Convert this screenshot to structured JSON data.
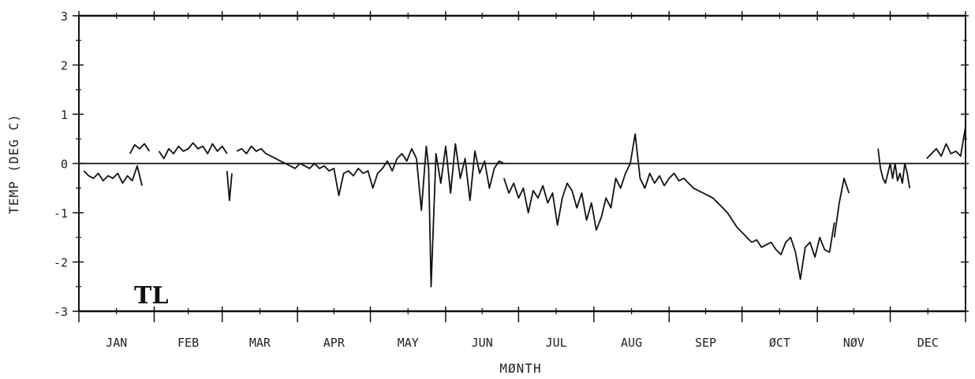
{
  "chart_data": {
    "type": "line",
    "title": "",
    "panel_label": "TL",
    "xlabel": "MØNTH",
    "ylabel": "TEMP (DEG C)",
    "ylim": [
      -3,
      3
    ],
    "yticks": [
      "3",
      "2",
      "1",
      "0",
      "-1",
      "-2",
      "-3"
    ],
    "x_unit": "day of year",
    "xlim": [
      1,
      366
    ],
    "months": [
      "JAN",
      "FEB",
      "MAR",
      "APR",
      "MAY",
      "JUN",
      "JUL",
      "AUG",
      "SEP",
      "ØCT",
      "NØV",
      "DEC"
    ],
    "grid": false,
    "zero_line": true,
    "series": [
      {
        "segments": [
          {
            "x": [
              3,
              5,
              7,
              9,
              11,
              13,
              15,
              17,
              19,
              21,
              23,
              25,
              27
            ],
            "y": [
              -0.15,
              -0.25,
              -0.3,
              -0.2,
              -0.35,
              -0.25,
              -0.3,
              -0.2,
              -0.4,
              -0.25,
              -0.35,
              -0.05,
              -0.45
            ]
          },
          {
            "x": [
              22,
              24,
              26,
              28,
              30
            ],
            "y": [
              0.2,
              0.38,
              0.3,
              0.4,
              0.25
            ]
          },
          {
            "x": [
              34,
              36,
              38,
              40,
              42,
              44,
              46,
              48,
              50,
              52,
              54,
              56,
              58,
              60,
              62
            ],
            "y": [
              0.25,
              0.1,
              0.3,
              0.2,
              0.35,
              0.25,
              0.3,
              0.42,
              0.3,
              0.35,
              0.2,
              0.4,
              0.25,
              0.35,
              0.2
            ]
          },
          {
            "x": [
              62,
              63,
              64
            ],
            "y": [
              -0.15,
              -0.75,
              -0.2
            ]
          },
          {
            "x": [
              66,
              68,
              70,
              72,
              74,
              76,
              78,
              80,
              82,
              84,
              86,
              88,
              90,
              92,
              94,
              96,
              98,
              100,
              102,
              104,
              106,
              108,
              110,
              112,
              114,
              116,
              118,
              120,
              122,
              124,
              126,
              128,
              130,
              132,
              134,
              136,
              138,
              140
            ],
            "y": [
              0.25,
              0.3,
              0.2,
              0.35,
              0.25,
              0.3,
              0.2,
              0.15,
              0.1,
              0.05,
              0.0,
              -0.05,
              -0.1,
              0.0,
              -0.05,
              -0.1,
              0.0,
              -0.1,
              -0.05,
              -0.15,
              -0.1,
              -0.65,
              -0.2,
              -0.15,
              -0.25,
              -0.1,
              -0.2,
              -0.15,
              -0.5,
              -0.2,
              -0.1,
              0.05,
              -0.15,
              0.1,
              0.2,
              0.05,
              0.3,
              0.1
            ]
          },
          {
            "x": [
              140,
              142,
              144,
              145,
              146,
              148,
              150,
              152,
              154,
              156,
              158,
              160,
              162,
              164,
              166,
              168,
              170,
              172,
              174,
              176
            ],
            "y": [
              0.1,
              -0.95,
              0.35,
              -0.1,
              -2.5,
              0.2,
              -0.4,
              0.35,
              -0.6,
              0.4,
              -0.3,
              0.1,
              -0.75,
              0.25,
              -0.2,
              0.05,
              -0.5,
              -0.1,
              0.05,
              0.0
            ]
          },
          {
            "x": [
              176,
              178,
              180,
              182,
              184,
              186,
              188,
              190,
              192,
              194,
              196,
              198,
              200,
              202,
              204,
              206,
              208,
              210,
              212,
              214,
              216,
              218,
              220,
              222,
              224,
              226,
              228,
              230,
              232,
              234,
              236,
              238,
              240,
              242,
              244,
              246,
              248,
              250,
              252,
              254,
              256,
              258,
              260,
              262,
              264,
              266,
              268,
              270,
              272,
              274,
              276,
              278
            ],
            "y": [
              -0.3,
              -0.6,
              -0.4,
              -0.7,
              -0.5,
              -1.0,
              -0.55,
              -0.7,
              -0.45,
              -0.8,
              -0.6,
              -1.25,
              -0.7,
              -0.4,
              -0.55,
              -0.9,
              -0.6,
              -1.15,
              -0.8,
              -1.35,
              -1.1,
              -0.7,
              -0.9,
              -0.3,
              -0.5,
              -0.2,
              0.0,
              0.6,
              -0.3,
              -0.5,
              -0.2,
              -0.4,
              -0.25,
              -0.45,
              -0.3,
              -0.2,
              -0.35,
              -0.3,
              -0.4,
              -0.5,
              -0.55,
              -0.6,
              -0.65,
              -0.7,
              -0.8,
              -0.9,
              -1.0,
              -1.15,
              -1.3,
              -1.4,
              -1.5,
              -1.6
            ]
          },
          {
            "x": [
              278,
              280,
              282,
              284,
              286,
              288,
              290,
              292,
              294,
              296,
              298,
              300,
              302,
              304,
              306,
              308,
              310,
              312
            ],
            "y": [
              -1.6,
              -1.55,
              -1.7,
              -1.65,
              -1.6,
              -1.75,
              -1.85,
              -1.6,
              -1.5,
              -1.8,
              -2.35,
              -1.7,
              -1.6,
              -1.9,
              -1.5,
              -1.75,
              -1.8,
              -1.2
            ]
          },
          {
            "x": [
              312,
              314,
              316,
              318
            ],
            "y": [
              -1.5,
              -0.8,
              -0.3,
              -0.6
            ]
          },
          {
            "x": [
              330,
              331,
              332,
              333,
              334,
              335,
              336,
              337,
              338,
              339,
              340,
              341,
              342,
              343
            ],
            "y": [
              0.3,
              -0.1,
              -0.3,
              -0.4,
              -0.2,
              0.0,
              -0.3,
              0.0,
              -0.35,
              -0.2,
              -0.4,
              0.0,
              -0.2,
              -0.5
            ]
          },
          {
            "x": [
              350,
              352,
              354,
              356,
              358,
              360,
              362,
              364,
              366
            ],
            "y": [
              0.1,
              0.2,
              0.3,
              0.15,
              0.4,
              0.2,
              0.25,
              0.15,
              0.75
            ]
          }
        ]
      }
    ]
  }
}
